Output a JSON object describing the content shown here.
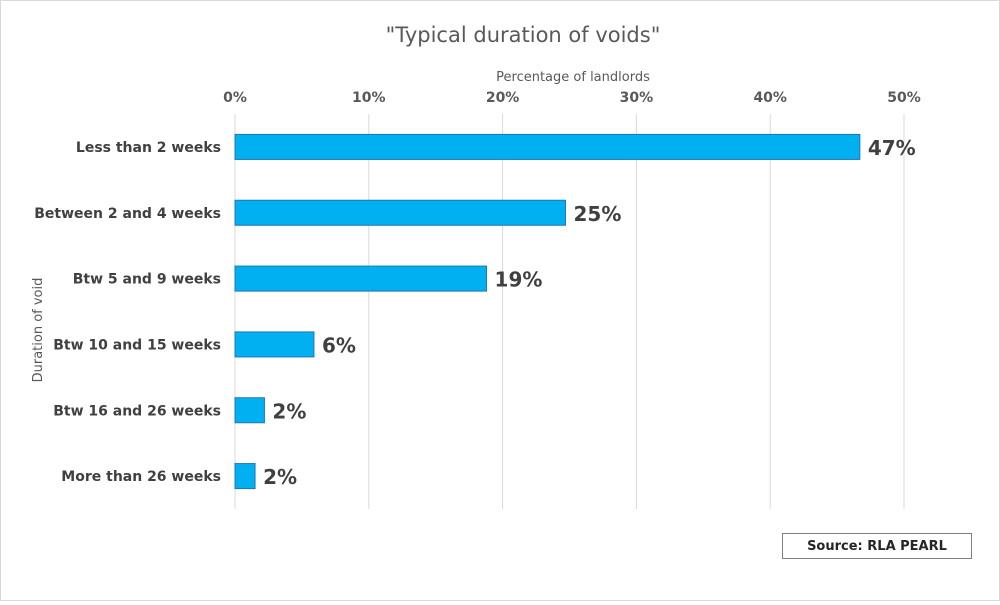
{
  "chart_data": {
    "type": "bar",
    "orientation": "horizontal",
    "title": "\"Typical duration of voids\"",
    "xlabel": "Percentage  of landlords",
    "ylabel": "Duration of void",
    "xlim": [
      0,
      50
    ],
    "x_ticks": [
      "0%",
      "10%",
      "20%",
      "30%",
      "40%",
      "50%"
    ],
    "categories": [
      "Less than 2 weeks",
      "Between 2 and 4 weeks",
      "Btw 5 and 9 weeks",
      "Btw 10 and 15 weeks",
      "Btw 16 and 26 weeks",
      "More than 26 weeks"
    ],
    "values": [
      46.7,
      24.7,
      18.8,
      5.9,
      2.2,
      1.5
    ],
    "data_labels": [
      "47%",
      "25%",
      "19%",
      "6%",
      "2%",
      "2%"
    ],
    "grid": true,
    "bar_color": "#00b0f0",
    "bar_border_color": "#1f77b4"
  },
  "source": "Source: RLA PEARL"
}
